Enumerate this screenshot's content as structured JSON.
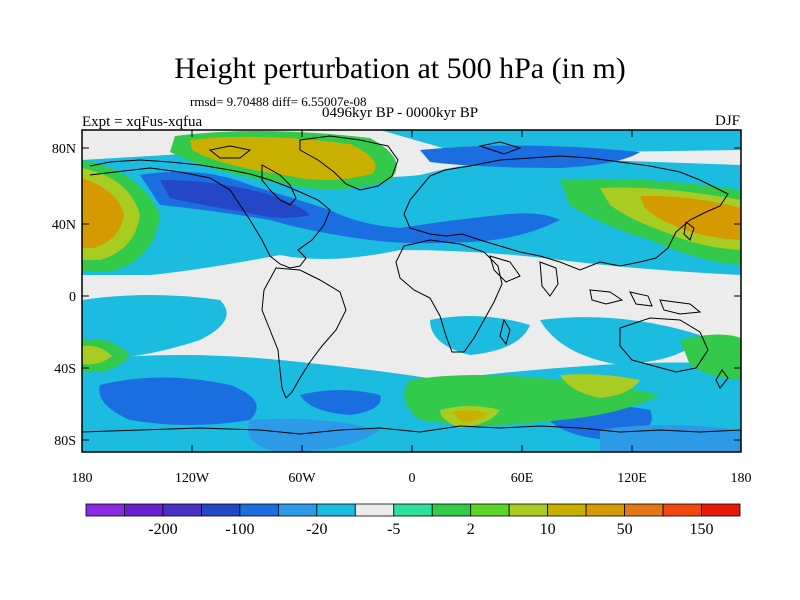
{
  "title": "Height perturbation at 500 hPa (in m)",
  "stats": "rmsd= 9.70488 diff= 6.55007e-08",
  "left_label": "Expt = xqFus-xqfua",
  "center_label": "0496kyr BP - 0000kyr BP",
  "right_label": "DJF",
  "lat_ticks": [
    "80N",
    "40N",
    "0",
    "40S",
    "80S"
  ],
  "lon_ticks": [
    "180",
    "120W",
    "60W",
    "0",
    "60E",
    "120E",
    "180"
  ],
  "colorbar": {
    "colors": [
      "#8a2be2",
      "#6a1fd0",
      "#4b30c8",
      "#2447c8",
      "#1a6ee0",
      "#2d9ae8",
      "#1cbce0",
      "#ececec",
      "#2de09a",
      "#33c94a",
      "#5ed428",
      "#a8cc22",
      "#c9b000",
      "#d49a00",
      "#e47816",
      "#ee4810",
      "#e81a0a"
    ],
    "labels": [
      "-200",
      "-100",
      "-20",
      "-5",
      "2",
      "10",
      "50",
      "150"
    ]
  }
}
